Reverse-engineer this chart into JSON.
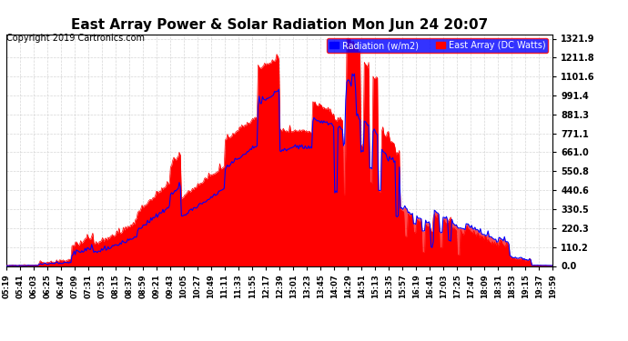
{
  "title": "East Array Power & Solar Radiation Mon Jun 24 20:07",
  "copyright": "Copyright 2019 Cartronics.com",
  "legend_labels": [
    "Radiation (w/m2)",
    "East Array (DC Watts)"
  ],
  "legend_colors": [
    "blue",
    "red"
  ],
  "ymax": 1321.9,
  "yticks": [
    0.0,
    110.2,
    220.3,
    330.5,
    440.6,
    550.8,
    661.0,
    771.1,
    881.3,
    991.4,
    1101.6,
    1211.8,
    1321.9
  ],
  "background_color": "#ffffff",
  "plot_bg_color": "#ffffff",
  "grid_color": "#cccccc",
  "fill_color": "red",
  "line_color_radiation": "blue",
  "line_color_east": "red",
  "x_labels": [
    "05:19",
    "05:41",
    "06:03",
    "06:25",
    "06:47",
    "07:09",
    "07:31",
    "07:53",
    "08:15",
    "08:37",
    "08:59",
    "09:21",
    "09:43",
    "10:05",
    "10:27",
    "10:49",
    "11:11",
    "11:33",
    "11:55",
    "12:17",
    "12:39",
    "13:01",
    "13:23",
    "13:45",
    "14:07",
    "14:29",
    "14:51",
    "15:13",
    "15:35",
    "15:57",
    "16:19",
    "16:41",
    "17:03",
    "17:25",
    "17:47",
    "18:09",
    "18:31",
    "18:53",
    "19:15",
    "19:37",
    "19:59"
  ]
}
